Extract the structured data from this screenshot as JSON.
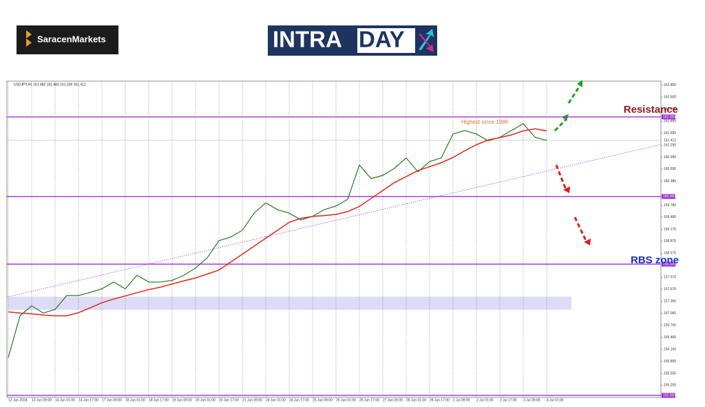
{
  "header": {
    "logo_text": "SaracenMarkets",
    "banner": [
      "INTRA",
      "DAY"
    ]
  },
  "chart_data": {
    "type": "line",
    "title": "USDJPY,H1 161.482 161.483 161.339 161.412",
    "categories": [
      "12 Jun 2024",
      null,
      "13 Jun 09:00",
      null,
      "14 Jun 01:00",
      null,
      "14 Jun 17:00",
      null,
      "17 Jun 09:00",
      null,
      "18 Jun 01:00",
      null,
      "18 Jun 17:00",
      null,
      "19 Jun 09:00",
      null,
      "20 Jun 01:00",
      null,
      "20 Jun 17:00",
      null,
      "21 Jun 09:00",
      null,
      "24 Jun 01:00",
      null,
      "24 Jun 17:00",
      null,
      "25 Jun 09:00",
      null,
      "26 Jun 01:00",
      null,
      "26 Jun 17:00",
      null,
      "27 Jun 09:00",
      null,
      "28 Jun 01:00",
      null,
      "28 Jun 17:00",
      null,
      "1 Jul 09:00",
      null,
      "2 Jul 01:00",
      null,
      "2 Jul 17:00",
      null,
      "3 Jul 09:00",
      null,
      "4 Jul 01:00"
    ],
    "series": [
      {
        "color": "#1f7a1f",
        "values": [
          155.95,
          157.0,
          157.25,
          157.07,
          157.16,
          157.51,
          157.51,
          157.59,
          157.68,
          157.85,
          157.68,
          158.02,
          157.85,
          157.85,
          157.89,
          158.02,
          158.2,
          158.46,
          158.89,
          158.98,
          159.15,
          159.58,
          159.84,
          159.67,
          159.58,
          159.41,
          159.5,
          159.67,
          159.76,
          159.93,
          160.79,
          160.45,
          160.53,
          160.71,
          160.97,
          160.62,
          160.88,
          160.97,
          161.57,
          161.66,
          161.57,
          161.4,
          161.49,
          161.66,
          161.83,
          161.49,
          161.41
        ]
      },
      {
        "color": "#e0241b",
        "values": [
          157.1,
          157.07,
          157.05,
          157.02,
          157.0,
          157.0,
          157.08,
          157.2,
          157.33,
          157.42,
          157.5,
          157.58,
          157.66,
          157.72,
          157.8,
          157.88,
          157.95,
          158.05,
          158.15,
          158.35,
          158.55,
          158.75,
          158.95,
          159.15,
          159.35,
          159.45,
          159.5,
          159.52,
          159.55,
          159.62,
          159.75,
          159.95,
          160.15,
          160.35,
          160.5,
          160.65,
          160.75,
          160.85,
          160.98,
          161.15,
          161.3,
          161.42,
          161.48,
          161.55,
          161.65,
          161.7,
          161.65
        ]
      }
    ],
    "ylim": [
      154.95,
      162.9
    ],
    "yticks": [
      {
        "value": 162.8,
        "label": "162.800"
      },
      {
        "value": 162.5,
        "label": "162.500"
      },
      {
        "value": 162.2,
        "label": "162.200"
      },
      161.895,
      161.595,
      {
        "value": 161.29,
        "label": "161.290"
      },
      {
        "value": 160.99,
        "label": "160.990"
      },
      {
        "value": 160.69,
        "label": "160.690"
      },
      160.385,
      {
        "value": 159.78,
        "label": "159.780"
      },
      {
        "value": 159.48,
        "label": "159.480"
      },
      159.175,
      158.875,
      158.575,
      {
        "value": 158.27,
        "label": "158.270"
      },
      {
        "value": 157.97,
        "label": "157.970"
      },
      {
        "value": 157.67,
        "label": "157.670"
      },
      157.365,
      157.065,
      156.765,
      {
        "value": 156.46,
        "label": "156.460"
      },
      {
        "value": 156.16,
        "label": "156.160"
      },
      155.855,
      155.555,
      155.255
    ],
    "levels": [
      {
        "value": 162,
        "label": "162.000"
      },
      {
        "value": 160,
        "label": "160.000"
      },
      {
        "value": 158.3,
        "label": "158.300"
      },
      {
        "value": 155,
        "label": "155.000"
      }
    ],
    "level_color": "#9b30d0",
    "current_price": {
      "value": 161.412,
      "label": "161.412"
    },
    "trendline": [
      157.47,
      161.31
    ],
    "zone": [
      157.15,
      157.48
    ],
    "zone_color": "#dcdcf7",
    "grid": true,
    "annotations": [
      "Highest since 1986",
      "Resistance",
      "RBS zone"
    ]
  }
}
